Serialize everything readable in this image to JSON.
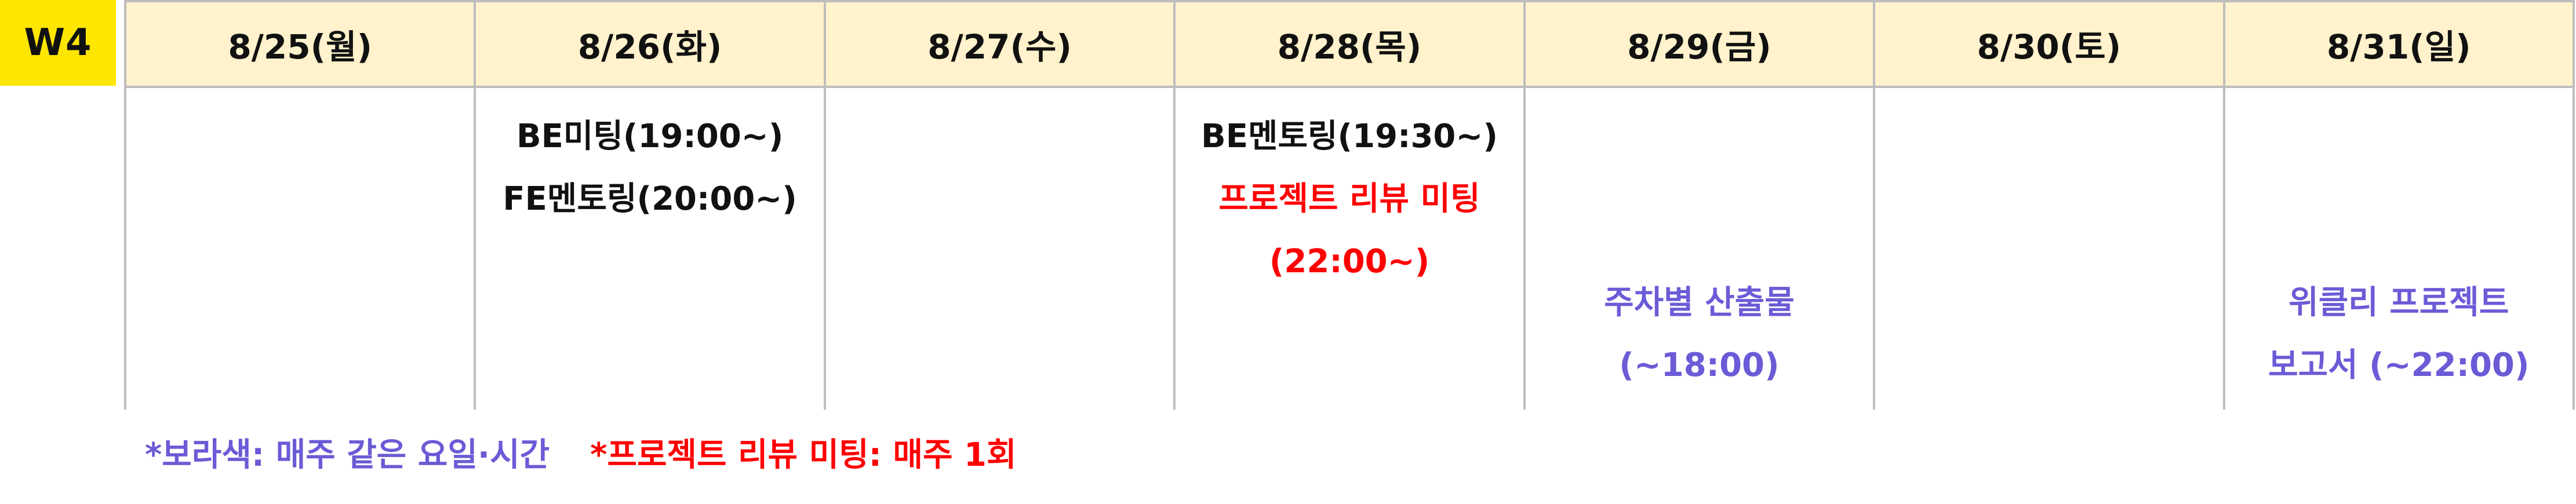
{
  "week_label": "W4",
  "colors": {
    "week_badge": "#FFE600",
    "header_bg": "#FFF2CC",
    "grid_border": "#BDBDBD",
    "text_black": "#111111",
    "text_red": "#FF0000",
    "text_purple": "#6B5BD6"
  },
  "days": [
    {
      "header": "8/25(월)",
      "top_lines": [],
      "bottom_lines": []
    },
    {
      "header": "8/26(화)",
      "top_lines": [
        "BE미팅(19:00~)",
        "FE멘토링(20:00~)"
      ],
      "bottom_lines": []
    },
    {
      "header": "8/27(수)",
      "top_lines": [],
      "bottom_lines": []
    },
    {
      "header": "8/28(목)",
      "top_lines": [
        "BE멘토링(19:30~)",
        "프로젝트 리뷰 미팅",
        "(22:00~)"
      ],
      "bottom_lines": []
    },
    {
      "header": "8/29(금)",
      "top_lines": [],
      "bottom_lines": [
        "주차별 산출물",
        "(~18:00)"
      ]
    },
    {
      "header": "8/30(토)",
      "top_lines": [],
      "bottom_lines": []
    },
    {
      "header": "8/31(일)",
      "top_lines": [],
      "bottom_lines": [
        "위클리 프로젝트",
        "보고서 (~22:00)"
      ]
    }
  ],
  "legend": {
    "purple_note": "*보라색: 매주 같은 요일·시간",
    "red_note": "*프로젝트 리뷰 미팅: 매주 1회"
  }
}
